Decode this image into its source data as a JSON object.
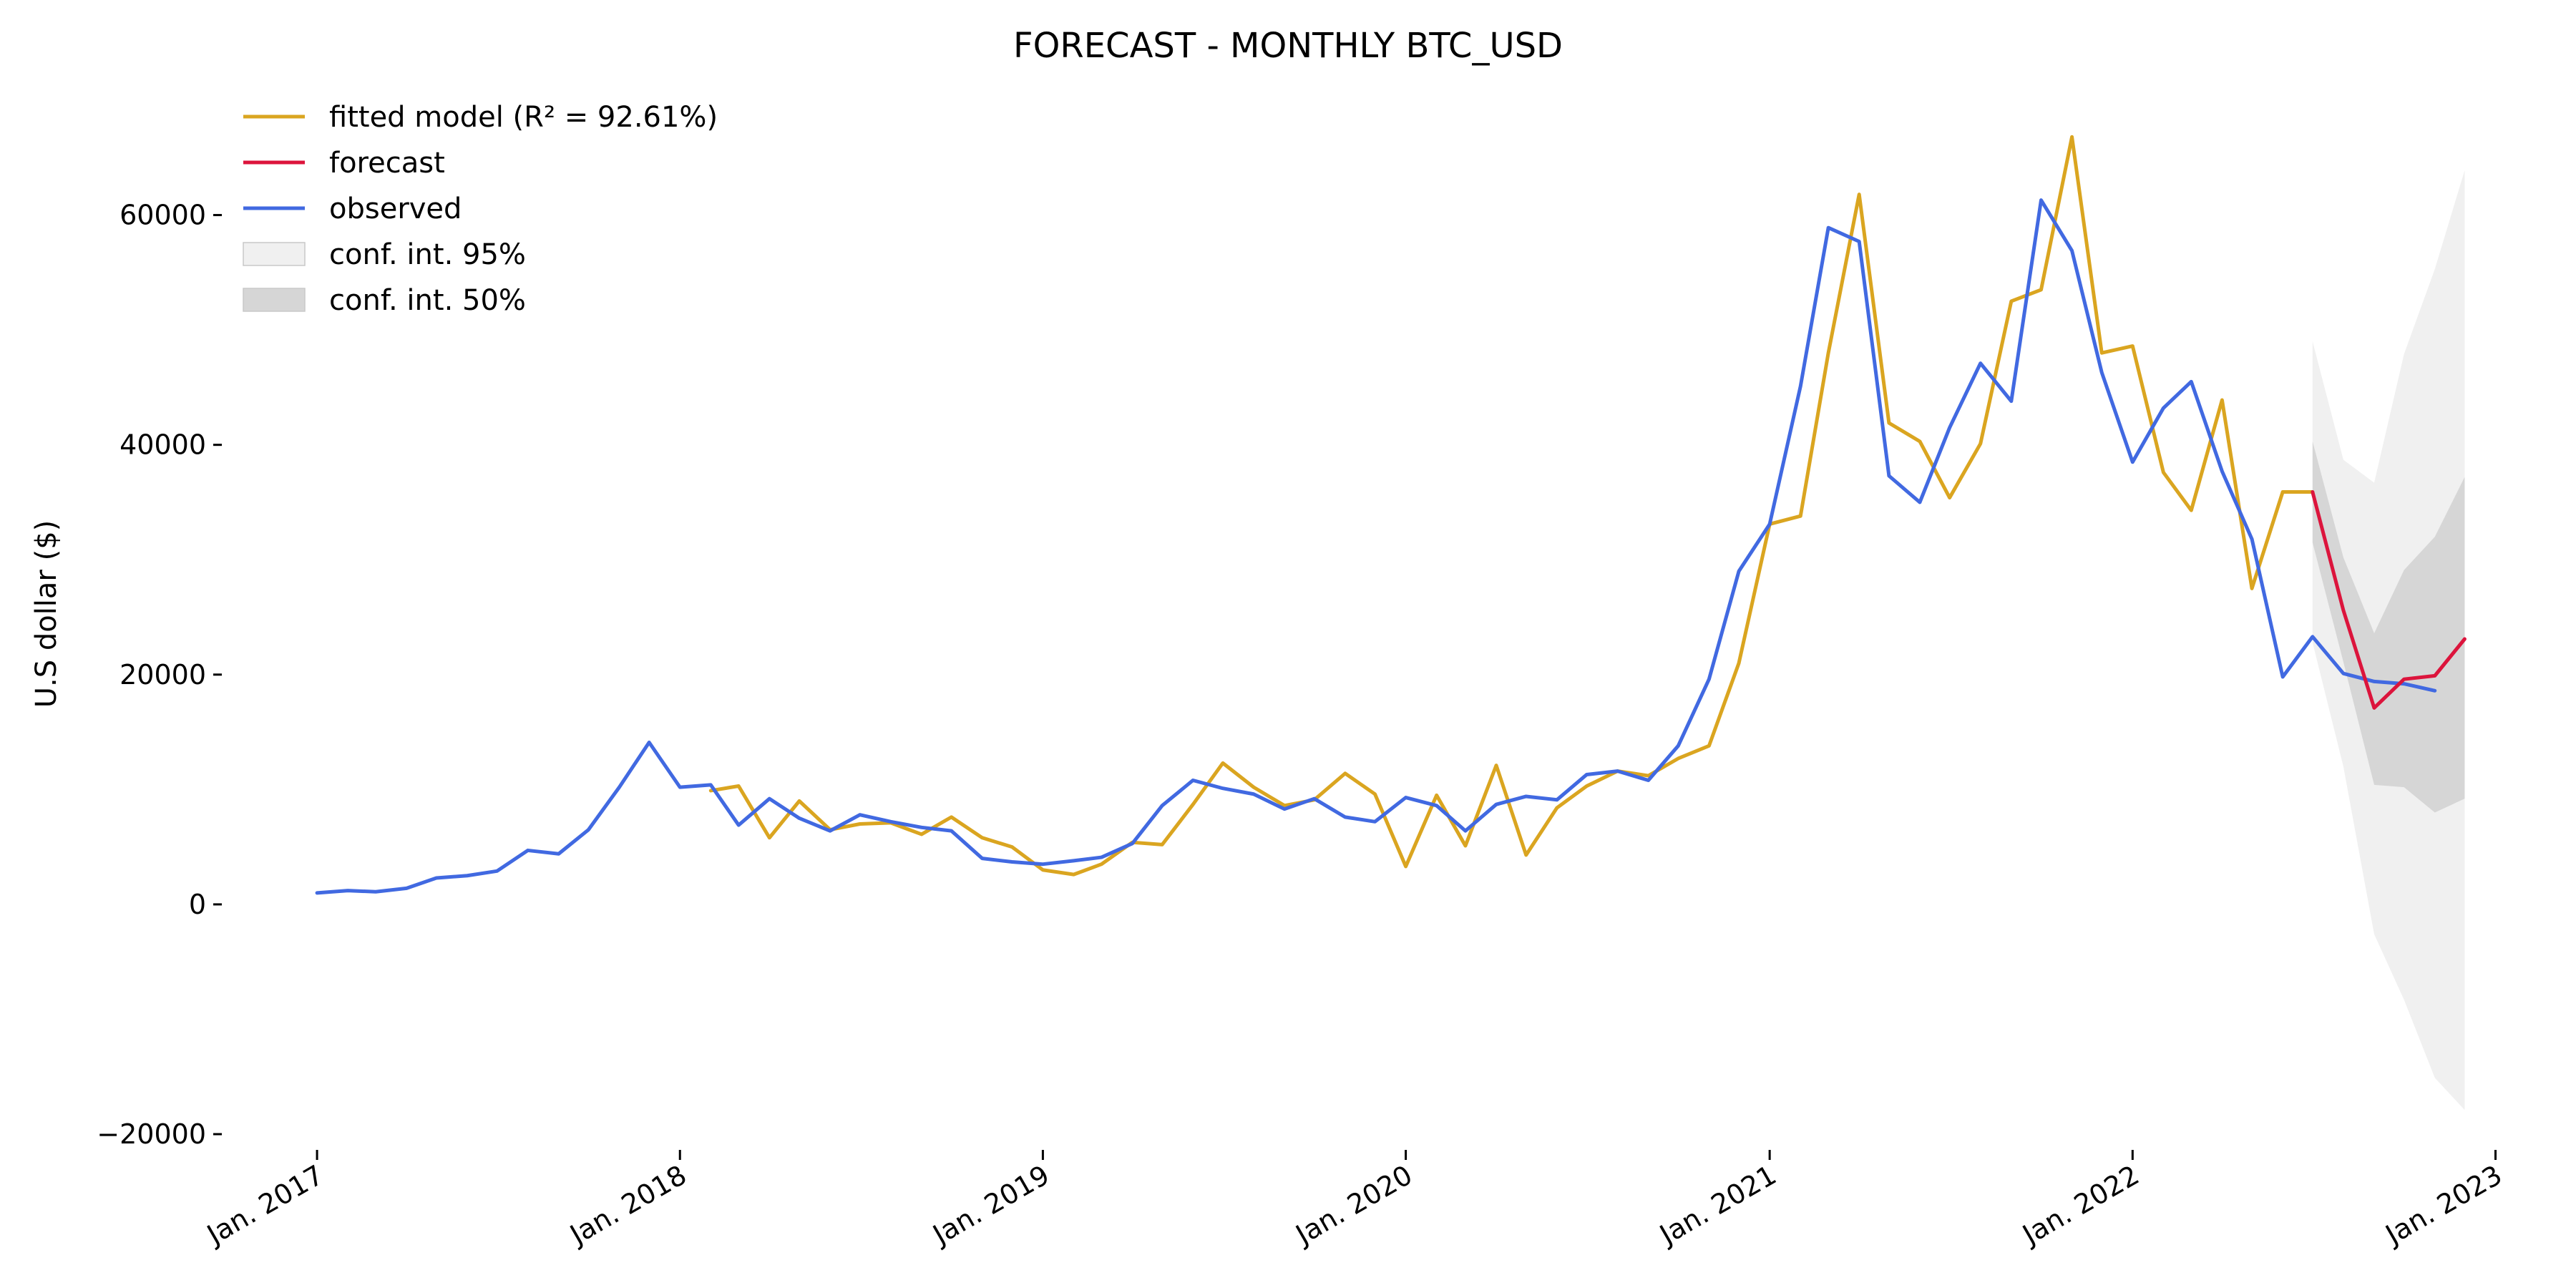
{
  "chart_data": {
    "type": "line",
    "title": "FORECAST - MONTHLY BTC_USD",
    "ylabel": "U.S dollar ($)",
    "xlabel": "",
    "ylim": [
      -20000,
      70000
    ],
    "xlim": [
      "2016-12-01",
      "2023-01-10"
    ],
    "grid": false,
    "legend_position": "top-left",
    "y_ticks": [
      {
        "value": -20000,
        "label": "−20000"
      },
      {
        "value": 0,
        "label": "0"
      },
      {
        "value": 20000,
        "label": "20000"
      },
      {
        "value": 40000,
        "label": "40000"
      },
      {
        "value": 60000,
        "label": "60000"
      }
    ],
    "x_ticks": [
      {
        "date": "2017-01-01",
        "label": "Jan. 2017"
      },
      {
        "date": "2018-01-01",
        "label": "Jan. 2018"
      },
      {
        "date": "2019-01-01",
        "label": "Jan. 2019"
      },
      {
        "date": "2020-01-01",
        "label": "Jan. 2020"
      },
      {
        "date": "2021-01-01",
        "label": "Jan. 2021"
      },
      {
        "date": "2022-01-01",
        "label": "Jan. 2022"
      },
      {
        "date": "2023-01-01",
        "label": "Jan. 2023"
      }
    ],
    "legend": [
      {
        "label": "fitted model (R² = 92.61%)",
        "kind": "line",
        "color": "#daa520"
      },
      {
        "label": "forecast",
        "kind": "line",
        "color": "#dc143c"
      },
      {
        "label": "observed",
        "kind": "line",
        "color": "#4169e1"
      },
      {
        "label": "conf. int. 95%",
        "kind": "patch",
        "color": "#f0f0f0"
      },
      {
        "label": "conf. int. 50%",
        "kind": "patch",
        "color": "#d6d6d6"
      }
    ],
    "series": [
      {
        "name": "observed",
        "color": "#4169e1",
        "x": [
          "2017-01-01",
          "2017-02-01",
          "2017-03-01",
          "2017-04-01",
          "2017-05-01",
          "2017-06-01",
          "2017-07-01",
          "2017-08-01",
          "2017-09-01",
          "2017-10-01",
          "2017-11-01",
          "2017-12-01",
          "2018-01-01",
          "2018-02-01",
          "2018-03-01",
          "2018-04-01",
          "2018-05-01",
          "2018-06-01",
          "2018-07-01",
          "2018-08-01",
          "2018-09-01",
          "2018-10-01",
          "2018-11-01",
          "2018-12-01",
          "2019-01-01",
          "2019-02-01",
          "2019-03-01",
          "2019-04-01",
          "2019-05-01",
          "2019-06-01",
          "2019-07-01",
          "2019-08-01",
          "2019-09-01",
          "2019-10-01",
          "2019-11-01",
          "2019-12-01",
          "2020-01-01",
          "2020-02-01",
          "2020-03-01",
          "2020-04-01",
          "2020-05-01",
          "2020-06-01",
          "2020-07-01",
          "2020-08-01",
          "2020-09-01",
          "2020-10-01",
          "2020-11-01",
          "2020-12-01",
          "2021-01-01",
          "2021-02-01",
          "2021-03-01",
          "2021-04-01",
          "2021-05-01",
          "2021-06-01",
          "2021-07-01",
          "2021-08-01",
          "2021-09-01",
          "2021-10-01",
          "2021-11-01",
          "2021-12-01",
          "2022-01-01",
          "2022-02-01",
          "2022-03-01",
          "2022-04-01",
          "2022-05-01",
          "2022-06-01",
          "2022-07-01",
          "2022-08-01",
          "2022-09-01",
          "2022-10-01",
          "2022-11-01"
        ],
        "values": [
          1000,
          1200,
          1100,
          1400,
          2300,
          2500,
          2900,
          4700,
          4400,
          6500,
          10200,
          14100,
          10200,
          10400,
          6900,
          9200,
          7500,
          6400,
          7800,
          7200,
          6700,
          6400,
          4000,
          3700,
          3500,
          3800,
          4100,
          5300,
          8600,
          10800,
          10100,
          9600,
          8300,
          9200,
          7600,
          7200,
          9300,
          8600,
          6400,
          8700,
          9400,
          9100,
          11300,
          11600,
          10800,
          13800,
          19600,
          29000,
          33100,
          45100,
          58900,
          57700,
          37300,
          35000,
          41500,
          47100,
          43800,
          61300,
          56900,
          46300,
          38500,
          43200,
          45500,
          37700,
          31800,
          19800,
          23300,
          20100,
          19400,
          19200,
          18600
        ]
      },
      {
        "name": "fitted model (R² = 92.61%)",
        "color": "#daa520",
        "x": [
          "2018-02-01",
          "2018-03-01",
          "2018-04-01",
          "2018-05-01",
          "2018-06-01",
          "2018-07-01",
          "2018-08-01",
          "2018-09-01",
          "2018-10-01",
          "2018-11-01",
          "2018-12-01",
          "2019-01-01",
          "2019-02-01",
          "2019-03-01",
          "2019-04-01",
          "2019-05-01",
          "2019-06-01",
          "2019-07-01",
          "2019-08-01",
          "2019-09-01",
          "2019-10-01",
          "2019-11-01",
          "2019-12-01",
          "2020-01-01",
          "2020-02-01",
          "2020-03-01",
          "2020-04-01",
          "2020-05-01",
          "2020-06-01",
          "2020-07-01",
          "2020-08-01",
          "2020-09-01",
          "2020-10-01",
          "2020-11-01",
          "2020-12-01",
          "2021-01-01",
          "2021-02-01",
          "2021-03-01",
          "2021-04-01",
          "2021-05-01",
          "2021-06-01",
          "2021-07-01",
          "2021-08-01",
          "2021-09-01",
          "2021-10-01",
          "2021-11-01",
          "2021-12-01",
          "2022-01-01",
          "2022-02-01",
          "2022-03-01",
          "2022-04-01",
          "2022-05-01",
          "2022-06-01",
          "2022-07-01"
        ],
        "values": [
          9900,
          10300,
          5800,
          9000,
          6500,
          7000,
          7100,
          6100,
          7600,
          5800,
          5000,
          3000,
          2600,
          3500,
          5400,
          5200,
          8700,
          12300,
          10200,
          8600,
          9100,
          11400,
          9600,
          3300,
          9500,
          5100,
          12100,
          4300,
          8400,
          10300,
          11600,
          11200,
          12700,
          13800,
          21000,
          33100,
          33800,
          48000,
          61800,
          41900,
          40300,
          35400,
          40100,
          52500,
          53500,
          66800,
          48000,
          48600,
          37600,
          34300,
          43900,
          27500,
          35900,
          35900
        ]
      },
      {
        "name": "forecast",
        "color": "#dc143c",
        "x": [
          "2022-07-01",
          "2022-08-01",
          "2022-09-01",
          "2022-10-01",
          "2022-11-01",
          "2022-12-01"
        ],
        "values": [
          35900,
          25600,
          17100,
          19600,
          19900,
          23100
        ]
      }
    ],
    "confidence_intervals": [
      {
        "name": "conf. int. 95%",
        "color": "#f0f0f0",
        "x": [
          "2022-07-01",
          "2022-08-01",
          "2022-09-01",
          "2022-10-01",
          "2022-11-01",
          "2022-12-01"
        ],
        "lower": [
          22800,
          12000,
          -2600,
          -8300,
          -15100,
          -17900
        ],
        "upper": [
          49000,
          38700,
          36700,
          47900,
          55300,
          63900
        ]
      },
      {
        "name": "conf. int. 50%",
        "color": "#d6d6d6",
        "x": [
          "2022-07-01",
          "2022-08-01",
          "2022-09-01",
          "2022-10-01",
          "2022-11-01",
          "2022-12-01"
        ],
        "lower": [
          31500,
          21100,
          10400,
          10200,
          8000,
          9200
        ],
        "upper": [
          40300,
          30200,
          23600,
          29100,
          32000,
          37200
        ]
      }
    ]
  }
}
